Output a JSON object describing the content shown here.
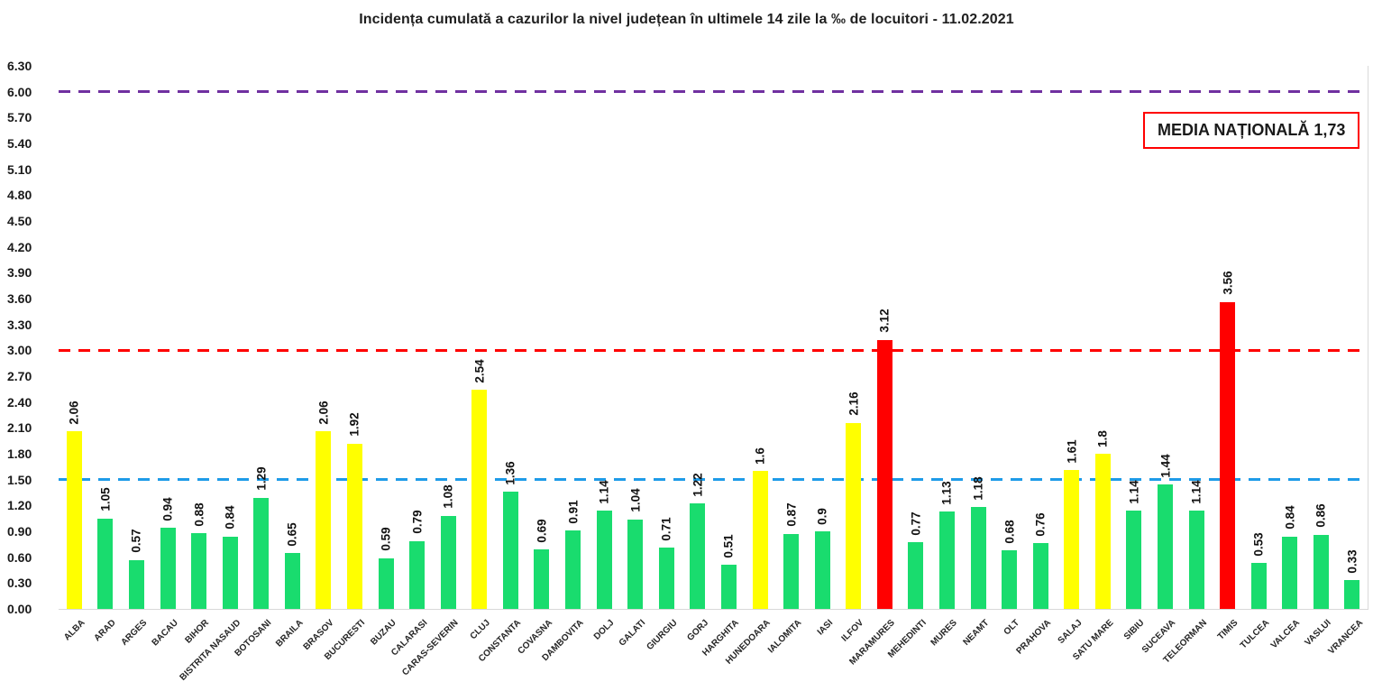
{
  "title": "Incidența cumulată a cazurilor la nivel județean în ultimele 14 zile la ‰ de locuitori - 11.02.2021",
  "national_average_box": "MEDIA NAȚIONALĂ 1,73",
  "colors": {
    "green": "#19DC6E",
    "yellow": "#FFFF00",
    "red": "#FF0000",
    "blue_refline": "#1E9BE8",
    "red_refline": "#FF0000",
    "purple_refline": "#7030A0",
    "axis_line": "#d9d9d9",
    "text": "#1a1a1a",
    "box_border": "#FF0000"
  },
  "chart_data": {
    "type": "bar",
    "title": "Incidența cumulată a cazurilor la nivel județean în ultimele 14 zile la ‰ de locuitori - 11.02.2021",
    "xlabel": "",
    "ylabel": "",
    "ylim": [
      0,
      6.3
    ],
    "ytick_step": 0.3,
    "ytick_labels": [
      "6.30",
      "6.00",
      "5.70",
      "5.40",
      "5.10",
      "4.80",
      "4.50",
      "4.20",
      "3.90",
      "3.60",
      "3.30",
      "3.00",
      "2.70",
      "2.40",
      "2.10",
      "1.80",
      "1.50",
      "1.20",
      "0.90",
      "0.60",
      "0.30",
      "0.00"
    ],
    "grid": false,
    "legend": "none",
    "bar_label_rotation": 90,
    "x_label_rotation": 45,
    "reference_lines": [
      {
        "value": 6.0,
        "color_key": "purple_refline",
        "style": "dashed"
      },
      {
        "value": 3.0,
        "color_key": "red_refline",
        "style": "dashed"
      },
      {
        "value": 1.5,
        "color_key": "blue_refline",
        "style": "dashed"
      }
    ],
    "national_average": "1,73",
    "counties": [
      {
        "name": "ALBA",
        "value": 2.06,
        "label": "2.06",
        "level": "yellow"
      },
      {
        "name": "ARAD",
        "value": 1.05,
        "label": "1.05",
        "level": "green"
      },
      {
        "name": "ARGES",
        "value": 0.57,
        "label": "0.57",
        "level": "green"
      },
      {
        "name": "BACAU",
        "value": 0.94,
        "label": "0.94",
        "level": "green"
      },
      {
        "name": "BIHOR",
        "value": 0.88,
        "label": "0.88",
        "level": "green"
      },
      {
        "name": "BISTRITA NASAUD",
        "value": 0.84,
        "label": "0.84",
        "level": "green"
      },
      {
        "name": "BOTOSANI",
        "value": 1.29,
        "label": "1.29",
        "level": "green"
      },
      {
        "name": "BRAILA",
        "value": 0.65,
        "label": "0.65",
        "level": "green"
      },
      {
        "name": "BRASOV",
        "value": 2.06,
        "label": "2.06",
        "level": "yellow"
      },
      {
        "name": "BUCURESTI",
        "value": 1.92,
        "label": "1.92",
        "level": "yellow"
      },
      {
        "name": "BUZAU",
        "value": 0.59,
        "label": "0.59",
        "level": "green"
      },
      {
        "name": "CALARASI",
        "value": 0.79,
        "label": "0.79",
        "level": "green"
      },
      {
        "name": "CARAS-SEVERIN",
        "value": 1.08,
        "label": "1.08",
        "level": "green"
      },
      {
        "name": "CLUJ",
        "value": 2.54,
        "label": "2.54",
        "level": "yellow"
      },
      {
        "name": "CONSTANTA",
        "value": 1.36,
        "label": "1.36",
        "level": "green"
      },
      {
        "name": "COVASNA",
        "value": 0.69,
        "label": "0.69",
        "level": "green"
      },
      {
        "name": "DAMBOVITA",
        "value": 0.91,
        "label": "0.91",
        "level": "green"
      },
      {
        "name": "DOLJ",
        "value": 1.14,
        "label": "1.14",
        "level": "green"
      },
      {
        "name": "GALATI",
        "value": 1.04,
        "label": "1.04",
        "level": "green"
      },
      {
        "name": "GIURGIU",
        "value": 0.71,
        "label": "0.71",
        "level": "green"
      },
      {
        "name": "GORJ",
        "value": 1.22,
        "label": "1.22",
        "level": "green"
      },
      {
        "name": "HARGHITA",
        "value": 0.51,
        "label": "0.51",
        "level": "green"
      },
      {
        "name": "HUNEDOARA",
        "value": 1.6,
        "label": "1.6",
        "level": "yellow"
      },
      {
        "name": "IALOMITA",
        "value": 0.87,
        "label": "0.87",
        "level": "green"
      },
      {
        "name": "IASI",
        "value": 0.9,
        "label": "0.9",
        "level": "green"
      },
      {
        "name": "ILFOV",
        "value": 2.16,
        "label": "2.16",
        "level": "yellow"
      },
      {
        "name": "MARAMURES",
        "value": 3.12,
        "label": "3.12",
        "level": "red"
      },
      {
        "name": "MEHEDINTI",
        "value": 0.77,
        "label": "0.77",
        "level": "green"
      },
      {
        "name": "MURES",
        "value": 1.13,
        "label": "1.13",
        "level": "green"
      },
      {
        "name": "NEAMT",
        "value": 1.18,
        "label": "1.18",
        "level": "green"
      },
      {
        "name": "OLT",
        "value": 0.68,
        "label": "0.68",
        "level": "green"
      },
      {
        "name": "PRAHOVA",
        "value": 0.76,
        "label": "0.76",
        "level": "green"
      },
      {
        "name": "SALAJ",
        "value": 1.61,
        "label": "1.61",
        "level": "yellow"
      },
      {
        "name": "SATU MARE",
        "value": 1.8,
        "label": "1.8",
        "level": "yellow"
      },
      {
        "name": "SIBIU",
        "value": 1.14,
        "label": "1.14",
        "level": "green"
      },
      {
        "name": "SUCEAVA",
        "value": 1.44,
        "label": "1.44",
        "level": "green"
      },
      {
        "name": "TELEORMAN",
        "value": 1.14,
        "label": "1.14",
        "level": "green"
      },
      {
        "name": "TIMIS",
        "value": 3.56,
        "label": "3.56",
        "level": "red"
      },
      {
        "name": "TULCEA",
        "value": 0.53,
        "label": "0.53",
        "level": "green"
      },
      {
        "name": "VALCEA",
        "value": 0.84,
        "label": "0.84",
        "level": "green"
      },
      {
        "name": "VASLUI",
        "value": 0.86,
        "label": "0.86",
        "level": "green"
      },
      {
        "name": "VRANCEA",
        "value": 0.33,
        "label": "0.33",
        "level": "green"
      }
    ]
  }
}
